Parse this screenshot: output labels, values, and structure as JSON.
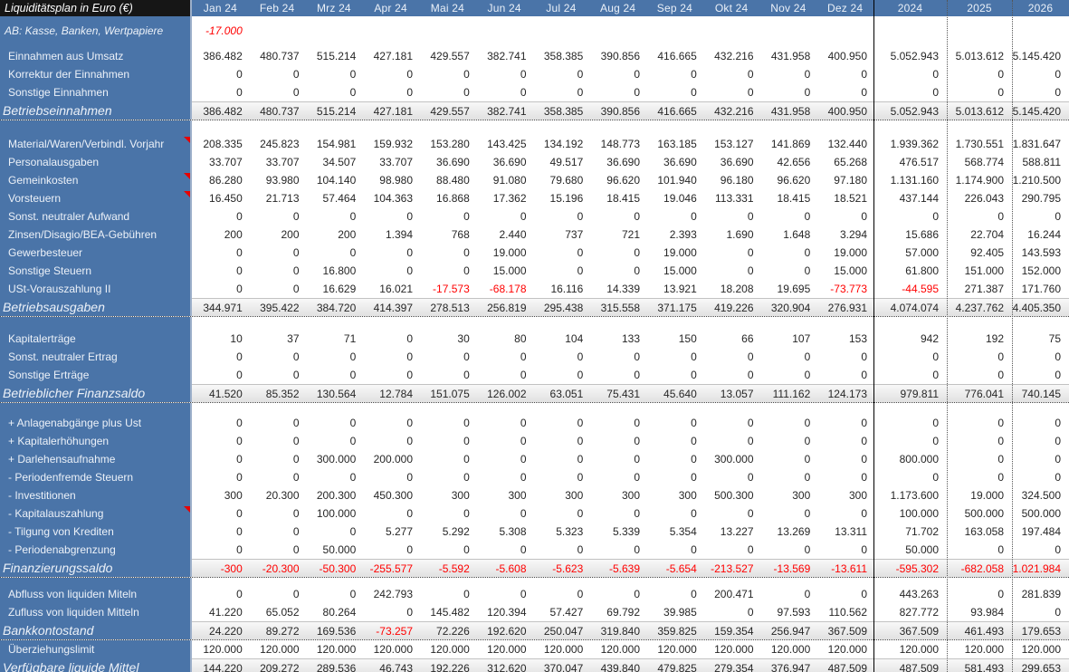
{
  "title": "Liquiditätsplan in Euro (€)",
  "colors": {
    "blue": "#4a74a8",
    "black_header": "#161616",
    "red": "#ff0000"
  },
  "columns": [
    "Jan 24",
    "Feb 24",
    "Mrz 24",
    "Apr 24",
    "Mai 24",
    "Jun 24",
    "Jul 24",
    "Aug 24",
    "Sep 24",
    "Okt 24",
    "Nov 24",
    "Dez 24",
    "2024",
    "2025",
    "2026"
  ],
  "icons": {
    "comment_indicator": "red-triangle"
  },
  "sections": [
    {
      "rows": [
        {
          "label": "AB: Kasse, Banken, Wertpapiere",
          "type": "opening",
          "values": [
            "-17.000",
            "",
            "",
            "",
            "",
            "",
            "",
            "",
            "",
            "",
            "",
            "",
            "",
            "",
            ""
          ]
        }
      ]
    },
    {
      "rows": [
        {
          "label": "Einnahmen aus Umsatz",
          "type": "normal",
          "values": [
            "386.482",
            "480.737",
            "515.214",
            "427.181",
            "429.557",
            "382.741",
            "358.385",
            "390.856",
            "416.665",
            "432.216",
            "431.958",
            "400.950",
            "5.052.943",
            "5.013.612",
            "5.145.420"
          ]
        },
        {
          "label": "Korrektur der Einnahmen",
          "type": "normal",
          "values": [
            "0",
            "0",
            "0",
            "0",
            "0",
            "0",
            "0",
            "0",
            "0",
            "0",
            "0",
            "0",
            "0",
            "0",
            "0"
          ]
        },
        {
          "label": "Sonstige Einnahmen",
          "type": "normal",
          "values": [
            "0",
            "0",
            "0",
            "0",
            "0",
            "0",
            "0",
            "0",
            "0",
            "0",
            "0",
            "0",
            "0",
            "0",
            "0"
          ]
        },
        {
          "label": "Betriebseinnahmen",
          "type": "summary",
          "values": [
            "386.482",
            "480.737",
            "515.214",
            "427.181",
            "429.557",
            "382.741",
            "358.385",
            "390.856",
            "416.665",
            "432.216",
            "431.958",
            "400.950",
            "5.052.943",
            "5.013.612",
            "5.145.420"
          ]
        }
      ]
    },
    {
      "rows": [
        {
          "label": "Material/Waren/Verbindl. Vorjahr",
          "type": "normal",
          "comment": true,
          "values": [
            "208.335",
            "245.823",
            "154.981",
            "159.932",
            "153.280",
            "143.425",
            "134.192",
            "148.773",
            "163.185",
            "153.127",
            "141.869",
            "132.440",
            "1.939.362",
            "1.730.551",
            "1.831.647"
          ]
        },
        {
          "label": "Personalausgaben",
          "type": "normal",
          "values": [
            "33.707",
            "33.707",
            "34.507",
            "33.707",
            "36.690",
            "36.690",
            "49.517",
            "36.690",
            "36.690",
            "36.690",
            "42.656",
            "65.268",
            "476.517",
            "568.774",
            "588.811"
          ]
        },
        {
          "label": "Gemeinkosten",
          "type": "normal",
          "comment": true,
          "values": [
            "86.280",
            "93.980",
            "104.140",
            "98.980",
            "88.480",
            "91.080",
            "79.680",
            "96.620",
            "101.940",
            "96.180",
            "96.620",
            "97.180",
            "1.131.160",
            "1.174.900",
            "1.210.500"
          ]
        },
        {
          "label": "Vorsteuern",
          "type": "normal",
          "comment": true,
          "values": [
            "16.450",
            "21.713",
            "57.464",
            "104.363",
            "16.868",
            "17.362",
            "15.196",
            "18.415",
            "19.046",
            "113.331",
            "18.415",
            "18.521",
            "437.144",
            "226.043",
            "290.795"
          ]
        },
        {
          "label": "Sonst. neutraler Aufwand",
          "type": "normal",
          "values": [
            "0",
            "0",
            "0",
            "0",
            "0",
            "0",
            "0",
            "0",
            "0",
            "0",
            "0",
            "0",
            "0",
            "0",
            "0"
          ]
        },
        {
          "label": "Zinsen/Disagio/BEA-Gebühren",
          "type": "normal",
          "values": [
            "200",
            "200",
            "200",
            "1.394",
            "768",
            "2.440",
            "737",
            "721",
            "2.393",
            "1.690",
            "1.648",
            "3.294",
            "15.686",
            "22.704",
            "16.244"
          ]
        },
        {
          "label": "Gewerbesteuer",
          "type": "normal",
          "values": [
            "0",
            "0",
            "0",
            "0",
            "0",
            "19.000",
            "0",
            "0",
            "19.000",
            "0",
            "0",
            "19.000",
            "57.000",
            "92.405",
            "143.593"
          ]
        },
        {
          "label": "Sonstige Steuern",
          "type": "normal",
          "values": [
            "0",
            "0",
            "16.800",
            "0",
            "0",
            "15.000",
            "0",
            "0",
            "15.000",
            "0",
            "0",
            "15.000",
            "61.800",
            "151.000",
            "152.000"
          ]
        },
        {
          "label": "USt-Vorauszahlung II",
          "type": "normal",
          "values": [
            "0",
            "0",
            "16.629",
            "16.021",
            "-17.573",
            "-68.178",
            "16.116",
            "14.339",
            "13.921",
            "18.208",
            "19.695",
            "-73.773",
            "-44.595",
            "271.387",
            "171.760"
          ]
        },
        {
          "label": "Betriebsausgaben",
          "type": "summary",
          "values": [
            "344.971",
            "395.422",
            "384.720",
            "414.397",
            "278.513",
            "256.819",
            "295.438",
            "315.558",
            "371.175",
            "419.226",
            "320.904",
            "276.931",
            "4.074.074",
            "4.237.762",
            "4.405.350"
          ]
        }
      ]
    },
    {
      "rows": [
        {
          "label": "Kapitalerträge",
          "type": "normal",
          "values": [
            "10",
            "37",
            "71",
            "0",
            "30",
            "80",
            "104",
            "133",
            "150",
            "66",
            "107",
            "153",
            "942",
            "192",
            "75"
          ]
        },
        {
          "label": "Sonst. neutraler Ertrag",
          "type": "normal",
          "values": [
            "0",
            "0",
            "0",
            "0",
            "0",
            "0",
            "0",
            "0",
            "0",
            "0",
            "0",
            "0",
            "0",
            "0",
            "0"
          ]
        },
        {
          "label": "Sonstige Erträge",
          "type": "normal",
          "values": [
            "0",
            "0",
            "0",
            "0",
            "0",
            "0",
            "0",
            "0",
            "0",
            "0",
            "0",
            "0",
            "0",
            "0",
            "0"
          ]
        },
        {
          "label": "Betrieblicher Finanzsaldo",
          "type": "summary",
          "values": [
            "41.520",
            "85.352",
            "130.564",
            "12.784",
            "151.075",
            "126.002",
            "63.051",
            "75.431",
            "45.640",
            "13.057",
            "111.162",
            "124.173",
            "979.811",
            "776.041",
            "740.145"
          ]
        }
      ]
    },
    {
      "rows": [
        {
          "label": "+ Anlagenabgänge plus Ust",
          "type": "normal",
          "values": [
            "0",
            "0",
            "0",
            "0",
            "0",
            "0",
            "0",
            "0",
            "0",
            "0",
            "0",
            "0",
            "0",
            "0",
            "0"
          ]
        },
        {
          "label": "+ Kapitalerhöhungen",
          "type": "normal",
          "values": [
            "0",
            "0",
            "0",
            "0",
            "0",
            "0",
            "0",
            "0",
            "0",
            "0",
            "0",
            "0",
            "0",
            "0",
            "0"
          ]
        },
        {
          "label": "+ Darlehensaufnahme",
          "type": "normal",
          "values": [
            "0",
            "0",
            "300.000",
            "200.000",
            "0",
            "0",
            "0",
            "0",
            "0",
            "300.000",
            "0",
            "0",
            "800.000",
            "0",
            "0"
          ]
        },
        {
          "label": "- Periodenfremde Steuern",
          "type": "normal",
          "values": [
            "0",
            "0",
            "0",
            "0",
            "0",
            "0",
            "0",
            "0",
            "0",
            "0",
            "0",
            "0",
            "0",
            "0",
            "0"
          ]
        },
        {
          "label": "- Investitionen",
          "type": "normal",
          "values": [
            "300",
            "20.300",
            "200.300",
            "450.300",
            "300",
            "300",
            "300",
            "300",
            "300",
            "500.300",
            "300",
            "300",
            "1.173.600",
            "19.000",
            "324.500"
          ]
        },
        {
          "label": "- Kapitalauszahlung",
          "type": "normal",
          "comment": true,
          "values": [
            "0",
            "0",
            "100.000",
            "0",
            "0",
            "0",
            "0",
            "0",
            "0",
            "0",
            "0",
            "0",
            "100.000",
            "500.000",
            "500.000"
          ]
        },
        {
          "label": "- Tilgung von Krediten",
          "type": "normal",
          "values": [
            "0",
            "0",
            "0",
            "5.277",
            "5.292",
            "5.308",
            "5.323",
            "5.339",
            "5.354",
            "13.227",
            "13.269",
            "13.311",
            "71.702",
            "163.058",
            "197.484"
          ]
        },
        {
          "label": "- Periodenabgrenzung",
          "type": "normal",
          "values": [
            "0",
            "0",
            "50.000",
            "0",
            "0",
            "0",
            "0",
            "0",
            "0",
            "0",
            "0",
            "0",
            "50.000",
            "0",
            "0"
          ]
        },
        {
          "label": "Finanzierungssaldo",
          "type": "summary",
          "values": [
            "-300",
            "-20.300",
            "-50.300",
            "-255.577",
            "-5.592",
            "-5.608",
            "-5.623",
            "-5.639",
            "-5.654",
            "-213.527",
            "-13.569",
            "-13.611",
            "-595.302",
            "-682.058",
            "-1.021.984"
          ]
        }
      ]
    },
    {
      "rows": [
        {
          "label": "Abfluss von liquiden Miteln",
          "type": "normal",
          "values": [
            "0",
            "0",
            "0",
            "242.793",
            "0",
            "0",
            "0",
            "0",
            "0",
            "200.471",
            "0",
            "0",
            "443.263",
            "0",
            "281.839"
          ]
        },
        {
          "label": "Zufluss von liquiden Mitteln",
          "type": "normal",
          "values": [
            "41.220",
            "65.052",
            "80.264",
            "0",
            "145.482",
            "120.394",
            "57.427",
            "69.792",
            "39.985",
            "0",
            "97.593",
            "110.562",
            "827.772",
            "93.984",
            "0"
          ]
        },
        {
          "label": "Bankkontostand",
          "type": "summary",
          "values": [
            "24.220",
            "89.272",
            "169.536",
            "-73.257",
            "72.226",
            "192.620",
            "250.047",
            "319.840",
            "359.825",
            "159.354",
            "256.947",
            "367.509",
            "367.509",
            "461.493",
            "179.653"
          ]
        }
      ]
    },
    {
      "rows": [
        {
          "label": "Überziehungslimit",
          "type": "normal",
          "values": [
            "120.000",
            "120.000",
            "120.000",
            "120.000",
            "120.000",
            "120.000",
            "120.000",
            "120.000",
            "120.000",
            "120.000",
            "120.000",
            "120.000",
            "120.000",
            "120.000",
            "120.000"
          ]
        },
        {
          "label": "Verfügbare liquide Mittel",
          "type": "summary",
          "values": [
            "144.220",
            "209.272",
            "289.536",
            "46.743",
            "192.226",
            "312.620",
            "370.047",
            "439.840",
            "479.825",
            "279.354",
            "376.947",
            "487.509",
            "487.509",
            "581.493",
            "299.653"
          ]
        }
      ]
    }
  ]
}
